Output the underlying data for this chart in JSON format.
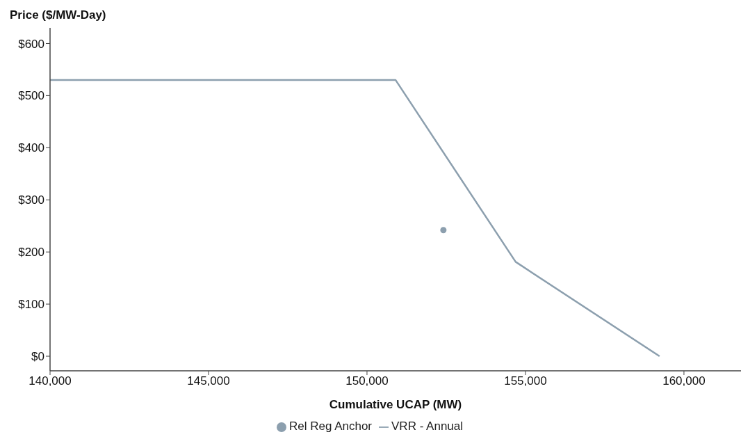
{
  "chart_data": {
    "type": "line",
    "ylabel": "Price ($/MW-Day)",
    "xlabel": "Cumulative UCAP (MW)",
    "series": [
      {
        "name": "Rel Reg Anchor",
        "type": "scatter",
        "marker": "circle",
        "color": "#8c9fae",
        "x": [
          152410
        ],
        "values": [
          242
        ]
      },
      {
        "name": "VRR - Annual",
        "marker": "none",
        "color": "#8c9fae",
        "x": [
          140000,
          150900,
          154690,
          159230
        ],
        "values": [
          530,
          530,
          181,
          0
        ]
      }
    ],
    "xlim": [
      140000,
      161800
    ],
    "ylim": [
      -28,
      630
    ],
    "xticks": [
      {
        "value": 140000,
        "label": "140,000"
      },
      {
        "value": 145000,
        "label": "145,000"
      },
      {
        "value": 150000,
        "label": "150,000"
      },
      {
        "value": 155000,
        "label": "155,000"
      },
      {
        "value": 160000,
        "label": "160,000"
      }
    ],
    "yticks": [
      {
        "value": 0,
        "label": "$0"
      },
      {
        "value": 100,
        "label": "$100"
      },
      {
        "value": 200,
        "label": "$200"
      },
      {
        "value": 300,
        "label": "$300"
      },
      {
        "value": 400,
        "label": "$400"
      },
      {
        "value": 500,
        "label": "$500"
      },
      {
        "value": 600,
        "label": "$600"
      }
    ],
    "grid": false,
    "legend": "bottom",
    "line_style": "solid"
  }
}
